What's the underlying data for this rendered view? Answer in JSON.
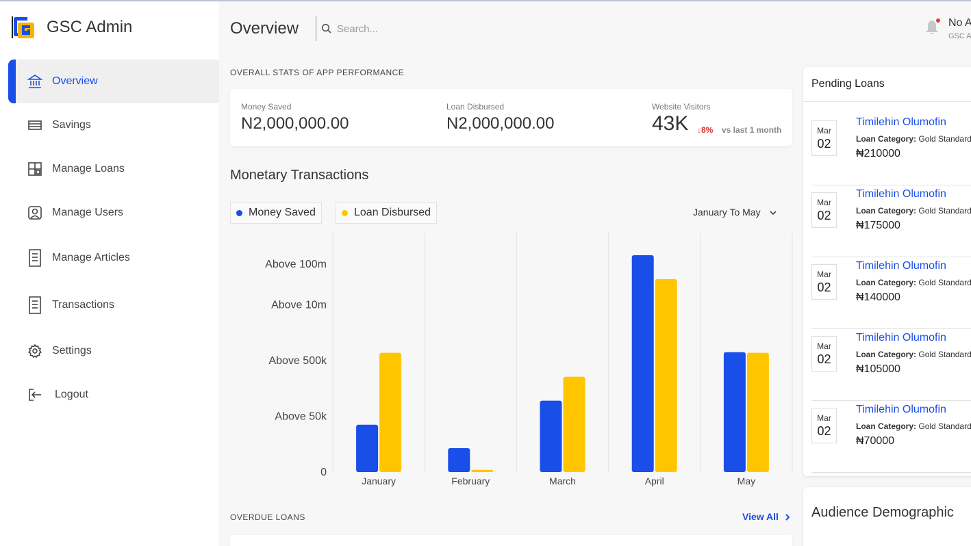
{
  "brand": {
    "title": "GSC Admin"
  },
  "sidebar": {
    "items": [
      {
        "label": "Overview",
        "icon": "bank-icon",
        "active": true
      },
      {
        "label": "Savings",
        "icon": "savings-icon",
        "active": false
      },
      {
        "label": "Manage Loans",
        "icon": "loans-icon",
        "active": false
      },
      {
        "label": "Manage Users",
        "icon": "user-icon",
        "active": false
      },
      {
        "label": "Manage Articles",
        "icon": "articles-icon",
        "active": false
      },
      {
        "label": "Transactions",
        "icon": "receipt-icon",
        "active": false
      },
      {
        "label": "Settings",
        "icon": "gear-icon",
        "active": false
      },
      {
        "label": "Logout",
        "icon": "logout-icon",
        "active": false
      }
    ]
  },
  "header": {
    "title": "Overview",
    "search_placeholder": "Search...",
    "user_name": "No A",
    "user_role": "GSC A"
  },
  "stats": {
    "section_label": "OVERALL STATS OF APP PERFORMANCE",
    "money_saved": {
      "label": "Money Saved",
      "value": "N2,000,000.00"
    },
    "loan_disbursed": {
      "label": "Loan Disbursed",
      "value": "N2,000,000.00"
    },
    "visitors": {
      "label": "Website Visitors",
      "value": "43K",
      "change": "↓8%",
      "compare": "vs last 1 month"
    }
  },
  "transactions": {
    "title": "Monetary Transactions",
    "legend": [
      "Money Saved",
      "Loan Disbursed"
    ],
    "range": "January To May"
  },
  "chart_data": {
    "type": "bar",
    "title": "Monetary Transactions",
    "categories": [
      "January",
      "February",
      "March",
      "April",
      "May"
    ],
    "y_ticks": [
      "Above 100m",
      "Above 10m",
      "Above 500k",
      "Above 50k",
      "0"
    ],
    "y_scale": "ordinal bands (0 to 4, 4 = Above 100m)",
    "series": [
      {
        "name": "Money Saved",
        "color": "#1a4ee8",
        "values": [
          0.85,
          0.43,
          1.28,
          3.89,
          2.15
        ]
      },
      {
        "name": "Loan Disbursed",
        "color": "#ffc600",
        "values": [
          2.14,
          0.04,
          1.71,
          3.46,
          2.14
        ]
      }
    ],
    "ylim": [
      0,
      4.3
    ],
    "grid": "vertical",
    "legend_position": "top-left"
  },
  "overdue": {
    "label": "OVERDUE LOANS",
    "view_all": "View All"
  },
  "pending": {
    "title": "Pending Loans",
    "category_label": "Loan Category:",
    "loans": [
      {
        "month": "Mar",
        "day": "02",
        "name": "Timilehin Olumofin",
        "category": "Gold Standard",
        "amount": "₦210000"
      },
      {
        "month": "Mar",
        "day": "02",
        "name": "Timilehin Olumofin",
        "category": "Gold Standard",
        "amount": "₦175000"
      },
      {
        "month": "Mar",
        "day": "02",
        "name": "Timilehin Olumofin",
        "category": "Gold Standard",
        "amount": "₦140000"
      },
      {
        "month": "Mar",
        "day": "02",
        "name": "Timilehin Olumofin",
        "category": "Gold Standard",
        "amount": "₦105000"
      },
      {
        "month": "Mar",
        "day": "02",
        "name": "Timilehin Olumofin",
        "category": "Gold Standard",
        "amount": "₦70000"
      }
    ]
  },
  "audience": {
    "title": "Audience Demographic"
  }
}
